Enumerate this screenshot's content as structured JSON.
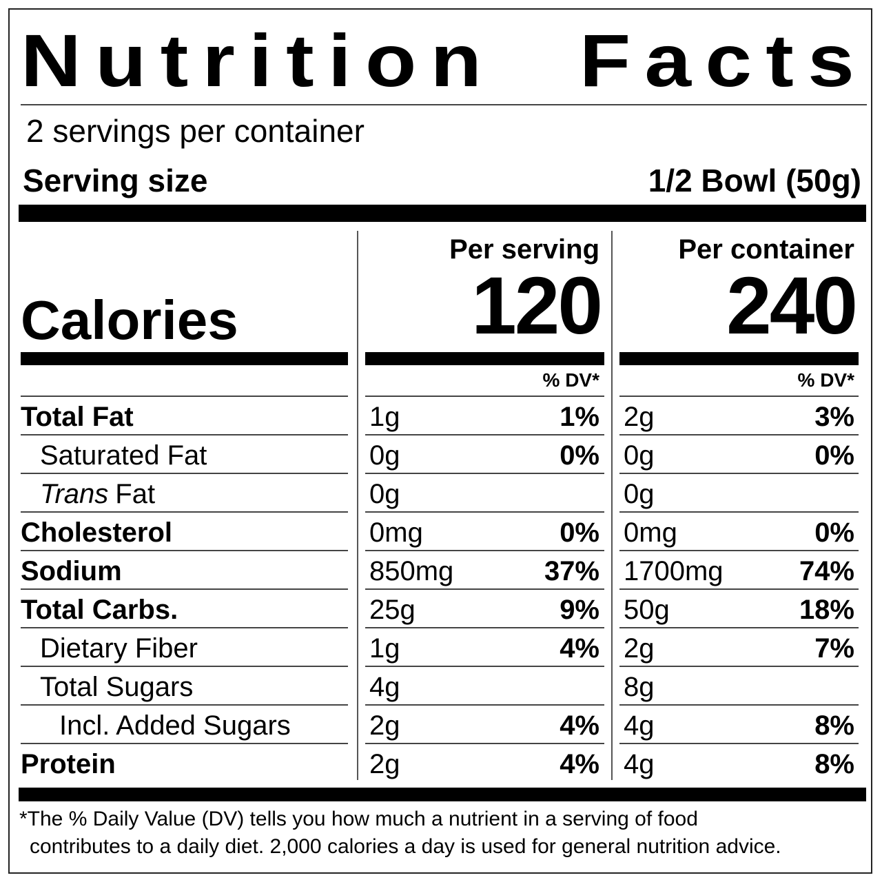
{
  "title": "Nutrition Facts",
  "servings_per_container": "2 servings per container",
  "serving_size": {
    "label": "Serving size",
    "value": "1/2 Bowl (50g)"
  },
  "calories": {
    "label": "Calories",
    "columns": [
      {
        "header": "Per serving",
        "value": "120",
        "dv_header": "% DV*"
      },
      {
        "header": "Per container",
        "value": "240",
        "dv_header": "% DV*"
      }
    ]
  },
  "nutrients": [
    {
      "name": "Total Fat",
      "level": "main",
      "values": [
        {
          "amount": "1g",
          "dv": "1%"
        },
        {
          "amount": "2g",
          "dv": "3%"
        }
      ]
    },
    {
      "name": "Saturated Fat",
      "level": "sub",
      "values": [
        {
          "amount": "0g",
          "dv": "0%"
        },
        {
          "amount": "0g",
          "dv": "0%"
        }
      ]
    },
    {
      "name_italic": "Trans",
      "name": "Fat",
      "level": "sub",
      "values": [
        {
          "amount": "0g"
        },
        {
          "amount": "0g"
        }
      ]
    },
    {
      "name": "Cholesterol",
      "level": "main",
      "values": [
        {
          "amount": "0mg",
          "dv": "0%"
        },
        {
          "amount": "0mg",
          "dv": "0%"
        }
      ]
    },
    {
      "name": "Sodium",
      "level": "main",
      "values": [
        {
          "amount": "850mg",
          "dv": "37%"
        },
        {
          "amount": "1700mg",
          "dv": "74%"
        }
      ]
    },
    {
      "name": "Total Carbs.",
      "level": "main",
      "values": [
        {
          "amount": "25g",
          "dv": "9%"
        },
        {
          "amount": "50g",
          "dv": "18%"
        }
      ]
    },
    {
      "name": "Dietary Fiber",
      "level": "sub",
      "values": [
        {
          "amount": "1g",
          "dv": "4%"
        },
        {
          "amount": "2g",
          "dv": "7%"
        }
      ]
    },
    {
      "name": "Total Sugars",
      "level": "sub",
      "values": [
        {
          "amount": "4g"
        },
        {
          "amount": "8g"
        }
      ]
    },
    {
      "name": "Incl. Added Sugars",
      "level": "subsub",
      "values": [
        {
          "amount": "2g",
          "dv": "4%"
        },
        {
          "amount": "4g",
          "dv": "8%"
        }
      ]
    },
    {
      "name": "Protein",
      "level": "main",
      "values": [
        {
          "amount": "2g",
          "dv": "4%"
        },
        {
          "amount": "4g",
          "dv": "8%"
        }
      ]
    }
  ],
  "footnote": [
    "*The % Daily Value (DV) tells you how much a nutrient in a serving of food",
    "contributes to a daily diet. 2,000 calories a day is used for general nutrition advice."
  ]
}
